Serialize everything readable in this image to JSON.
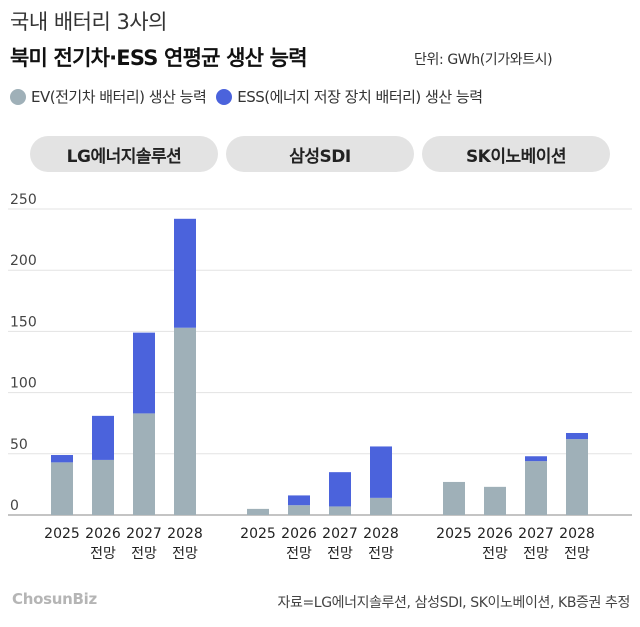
{
  "header": {
    "title_line1": "국내 배터리 3사의",
    "title_line2": "북미 전기차·ESS 연평균 생산 능력",
    "unit": "단위: GWh(기가와트시)"
  },
  "legend": [
    {
      "label": "EV(전기차 배터리) 생산 능력",
      "color": "#9fb0b8"
    },
    {
      "label": "ESS(에너지 저장 장치 배터리) 생산 능력",
      "color": "#4b63dc"
    }
  ],
  "chart_data": {
    "type": "bar",
    "stacked": true,
    "ylim": [
      0,
      250
    ],
    "yticks": [
      0,
      50,
      100,
      150,
      200,
      250
    ],
    "grid": true,
    "groups": [
      {
        "name": "LG에너지솔루션",
        "categories": [
          [
            "2025"
          ],
          [
            "2026",
            "전망"
          ],
          [
            "2027",
            "전망"
          ],
          [
            "2028",
            "전망"
          ]
        ],
        "series": [
          {
            "name": "EV(전기차 배터리) 생산 능력",
            "values": [
              43,
              45,
              83,
              153
            ]
          },
          {
            "name": "ESS(에너지 저장 장치 배터리) 생산 능력",
            "values": [
              6,
              36,
              66,
              89
            ]
          }
        ]
      },
      {
        "name": "삼성SDI",
        "categories": [
          [
            "2025"
          ],
          [
            "2026",
            "전망"
          ],
          [
            "2027",
            "전망"
          ],
          [
            "2028",
            "전망"
          ]
        ],
        "series": [
          {
            "name": "EV(전기차 배터리) 생산 능력",
            "values": [
              5,
              8,
              7,
              14
            ]
          },
          {
            "name": "ESS(에너지 저장 장치 배터리) 생산 능력",
            "values": [
              0,
              8,
              28,
              42
            ]
          }
        ]
      },
      {
        "name": "SK이노베이션",
        "categories": [
          [
            "2025"
          ],
          [
            "2026",
            "전망"
          ],
          [
            "2027",
            "전망"
          ],
          [
            "2028",
            "전망"
          ]
        ],
        "series": [
          {
            "name": "EV(전기차 배터리) 생산 능력",
            "values": [
              27,
              23,
              44,
              62
            ]
          },
          {
            "name": "ESS(에너지 저장 장치 배터리) 생산 능력",
            "values": [
              0,
              0,
              4,
              5
            ]
          }
        ]
      }
    ]
  },
  "footer": {
    "logo": "ChosunBiz",
    "source": "자료=LG에너지솔루션, 삼성SDI, SK이노베이션, KB증권 추정"
  }
}
